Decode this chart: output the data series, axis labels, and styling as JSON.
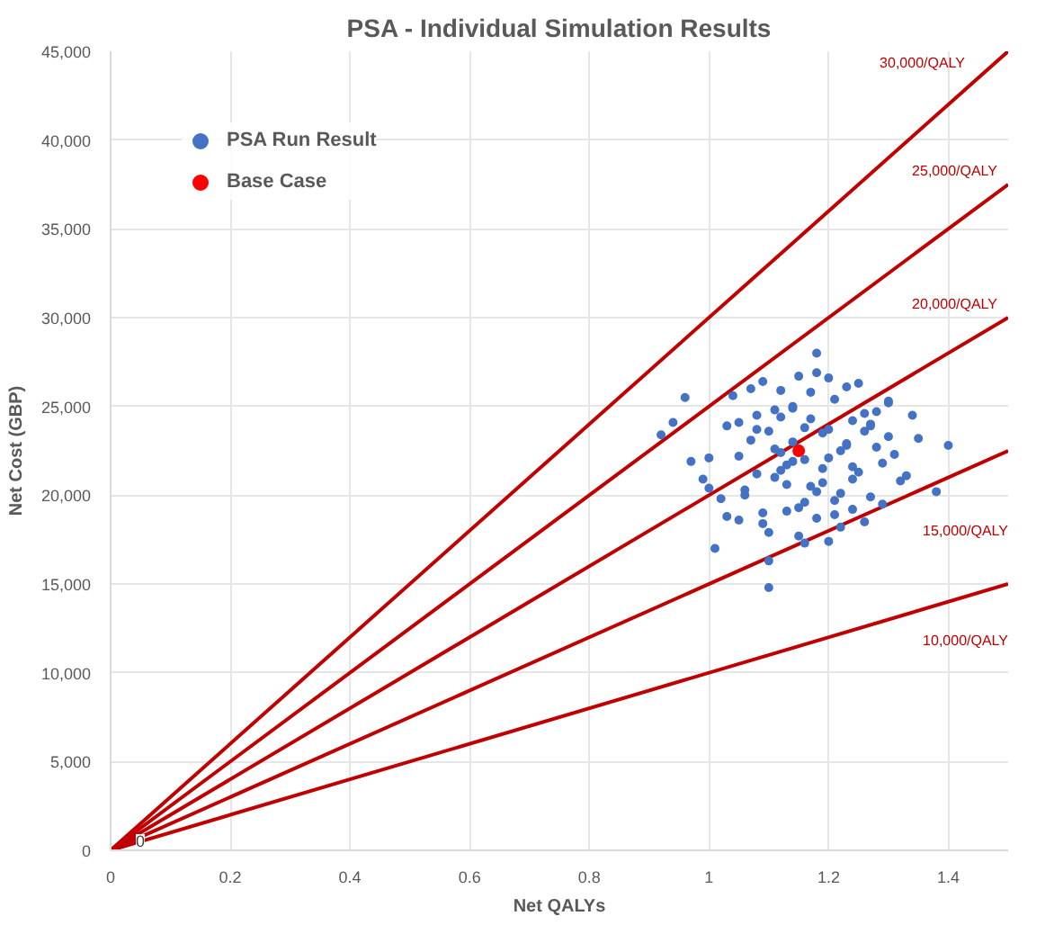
{
  "chart_data": {
    "type": "scatter",
    "title": "PSA - Individual Simulation Results",
    "xlabel": "Net QALYs",
    "ylabel": "Net Cost (GBP)",
    "xlim": [
      0,
      1.5
    ],
    "xticks": [
      0,
      0.2,
      0.4,
      0.6,
      0.8,
      1,
      1.2,
      1.4
    ],
    "ylim": [
      0,
      45000
    ],
    "yticks": [
      {
        "value": 0,
        "label": "0"
      },
      {
        "value": 5000,
        "label": "5,000"
      },
      {
        "value": 10000,
        "label": "10,000"
      },
      {
        "value": 15000,
        "label": "15,000"
      },
      {
        "value": 20000,
        "label": "20,000"
      },
      {
        "value": 25000,
        "label": "25,000"
      },
      {
        "value": 30000,
        "label": "30,000"
      },
      {
        "value": 35000,
        "label": "35,000"
      },
      {
        "value": 40000,
        "label": "40,000"
      },
      {
        "value": 45000,
        "label": "45,000"
      }
    ],
    "grid": true,
    "legend": "top left",
    "annotations": [
      {
        "text": "0",
        "x": 0,
        "y": 0
      }
    ],
    "series": [
      {
        "name": "30,000/QALY",
        "type": "line",
        "color": "#c00000",
        "x": [
          0,
          1.5
        ],
        "values": [
          0,
          45000
        ]
      },
      {
        "name": "25,000/QALY",
        "type": "line",
        "color": "#c00000",
        "x": [
          0,
          1.5
        ],
        "values": [
          0,
          37500
        ]
      },
      {
        "name": "20,000/QALY",
        "type": "line",
        "color": "#c00000",
        "x": [
          0,
          1.5
        ],
        "values": [
          0,
          30000
        ]
      },
      {
        "name": "15,000/QALY",
        "type": "line",
        "color": "#c00000",
        "x": [
          0,
          1.5
        ],
        "values": [
          0,
          22500
        ]
      },
      {
        "name": "10,000/QALY",
        "type": "line",
        "color": "#c00000",
        "x": [
          0,
          1.5
        ],
        "values": [
          0,
          15000
        ]
      },
      {
        "name": "PSA Run Result",
        "marker": "circle",
        "color": "#4472c4",
        "x": [
          1.1,
          1.4,
          1.38,
          0.92,
          1.18,
          1.1,
          1.2,
          1.01,
          1.34,
          0.96,
          0.94,
          0.97,
          1.0,
          1.03,
          1.05,
          1.07,
          1.08,
          1.09,
          1.11,
          1.12,
          1.13,
          1.14,
          1.15,
          1.16,
          1.17,
          1.19,
          1.21,
          1.22,
          1.23,
          1.24,
          1.25,
          1.26,
          1.27,
          1.28,
          1.29,
          1.3,
          1.31,
          1.32,
          1.05,
          1.06,
          1.08,
          1.1,
          1.12,
          1.13,
          1.15,
          1.16,
          1.18,
          1.2,
          1.22,
          1.24,
          1.26,
          1.28,
          1.3,
          1.02,
          1.04,
          1.07,
          1.09,
          1.11,
          1.14,
          1.17,
          1.19,
          1.21,
          1.23,
          1.25,
          1.27,
          1.29,
          1.12,
          1.14,
          1.16,
          1.18,
          1.2,
          1.15,
          1.13,
          1.17,
          1.19,
          1.11,
          1.08,
          1.06,
          1.22,
          1.24,
          1.26,
          0.99,
          1.33,
          1.35,
          1.03,
          1.09,
          1.15,
          1.21,
          1.27,
          1.12,
          1.18,
          1.24,
          1.0,
          1.3,
          1.1,
          1.16,
          1.2,
          1.14,
          1.23,
          1.05
        ],
        "values": [
          14800,
          22800,
          20200,
          23400,
          28000,
          16300,
          17400,
          17000,
          24500,
          25500,
          24100,
          21900,
          20400,
          23900,
          18600,
          26000,
          21200,
          19000,
          24800,
          22400,
          20600,
          23000,
          26700,
          19600,
          24300,
          21500,
          25400,
          18200,
          22900,
          20900,
          26300,
          23600,
          19900,
          24700,
          21800,
          25200,
          22300,
          20800,
          22200,
          20300,
          24500,
          17900,
          25900,
          21700,
          19300,
          23800,
          26900,
          22100,
          20100,
          24200,
          18500,
          22700,
          23300,
          19800,
          25600,
          23100,
          18400,
          21000,
          25000,
          20500,
          23500,
          18900,
          26100,
          21300,
          24000,
          19500,
          21400,
          24900,
          22000,
          18700,
          23700,
          22600,
          19100,
          25800,
          20700,
          22600,
          23700,
          20000,
          22500,
          19200,
          24600,
          20900,
          21100,
          23200,
          18800,
          26400,
          17700,
          19700,
          23900,
          24400,
          20200,
          21600,
          22100,
          25300,
          23600,
          17300,
          26600,
          21900,
          22800,
          24100
        ]
      },
      {
        "name": "Base Case",
        "marker": "circle",
        "color": "#ff0000",
        "x": [
          1.15
        ],
        "values": [
          22500
        ]
      }
    ]
  }
}
